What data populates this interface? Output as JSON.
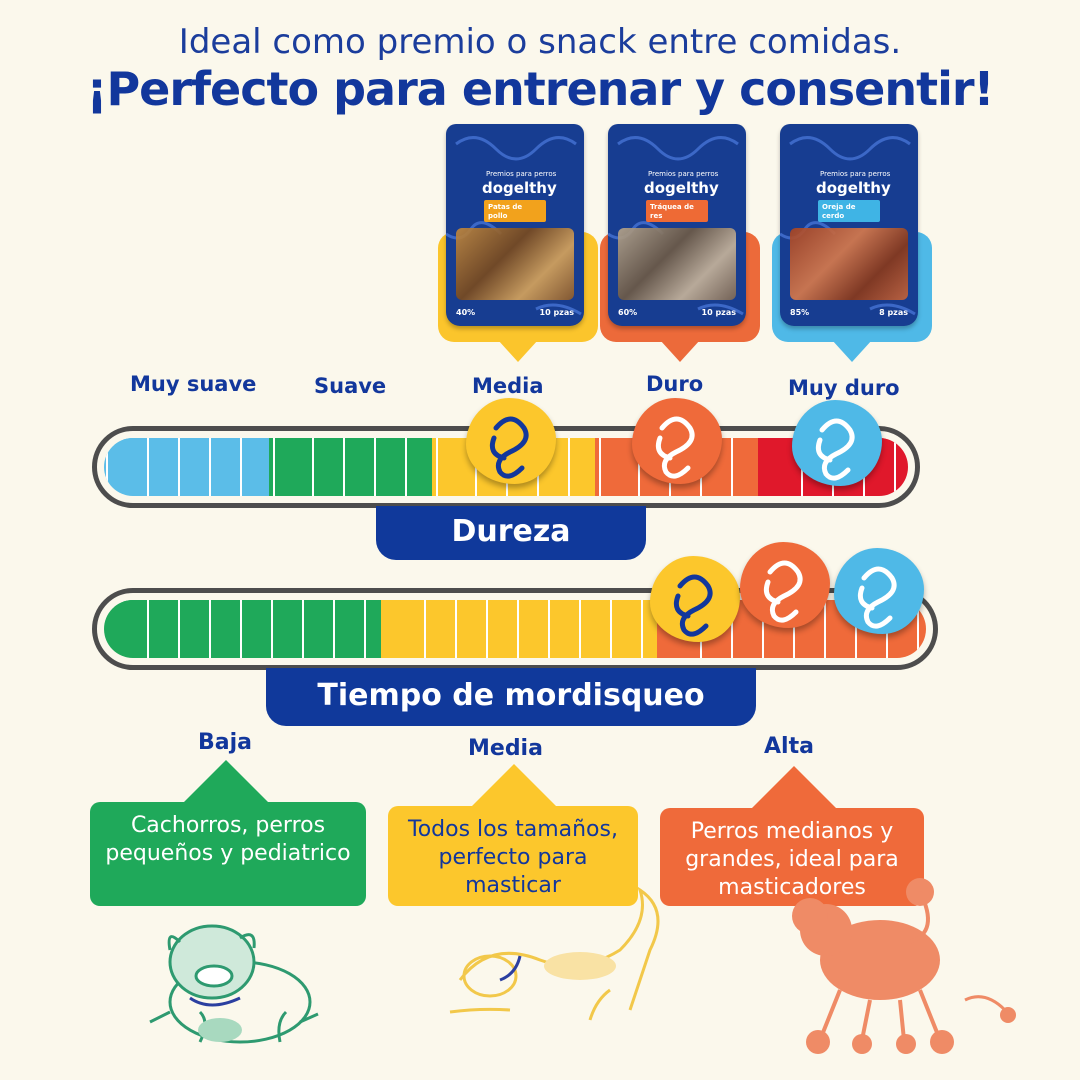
{
  "header": {
    "subtitle": "Ideal como premio o snack entre comidas.",
    "headline": "¡Perfecto para entrenar y consentir!"
  },
  "products": [
    {
      "kicker": "Premios para perros",
      "brand": "dogelthy",
      "flavor": "Patas de pollo",
      "flavor_color": "#f2a21c",
      "percent": "40%",
      "pieces": "10 pzas",
      "highlight_color": "#fbc52c"
    },
    {
      "kicker": "Premios para perros",
      "brand": "dogelthy",
      "flavor": "Tráquea de res",
      "flavor_color": "#ee6a35",
      "percent": "60%",
      "pieces": "10 pzas",
      "highlight_color": "#ec6a3a"
    },
    {
      "kicker": "Premios para perros",
      "brand": "dogelthy",
      "flavor": "Oreja de cerdo",
      "flavor_color": "#3fb4e5",
      "percent": "85%",
      "pieces": "8 pzas",
      "highlight_color": "#4fb9e7"
    }
  ],
  "hardness": {
    "title": "Dureza",
    "levels": [
      "Muy suave",
      "Suave",
      "Media",
      "Duro",
      "Muy duro"
    ],
    "colors": [
      "#5bbde8",
      "#1fa95a",
      "#fcc72c",
      "#ef6a3a",
      "#e0182b"
    ]
  },
  "chew_time": {
    "title": "Tiempo de mordisqueo",
    "colors": [
      "#1fa95a",
      "#fcc72c",
      "#ef6a3a"
    ]
  },
  "intensity": [
    {
      "level": "Baja",
      "text": "Cachorros, perros pequeños y pediatrico",
      "color": "#1fa95a",
      "text_color": "#ffffff"
    },
    {
      "level": "Media",
      "text": "Todos los tamaños, perfecto para masticar",
      "color": "#fcc72c",
      "text_color": "#12379c"
    },
    {
      "level": "Alta",
      "text": "Perros medianos y grandes, ideal para masticadores",
      "color": "#ef6a3a",
      "text_color": "#ffffff"
    }
  ],
  "icons": {
    "blob": "dogelthy-logo-icon",
    "dogs": [
      "bulldog-illustration",
      "stretching-dog-illustration",
      "poodle-illustration"
    ]
  }
}
